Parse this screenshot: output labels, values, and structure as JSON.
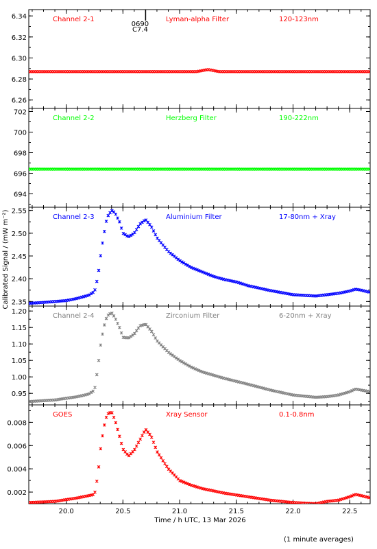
{
  "footnote": "(1 minute averages)",
  "event_marker": {
    "line1": "0690",
    "line2": "C7.4"
  },
  "chart_data": {
    "type": "scatter",
    "xlabel": "Time / h UTC, 13 Mar 2026",
    "ylabel": "Calibrated Signal / (mW m⁻²)",
    "xlim": [
      19.67,
      22.68
    ],
    "xticks": [
      20.0,
      20.5,
      21.0,
      21.5,
      22.0,
      22.5
    ],
    "xtick_labels": [
      "20.0",
      "20.5",
      "21.0",
      "21.5",
      "22.0",
      "22.5"
    ],
    "event_marker_x": 20.7,
    "panels": [
      {
        "channel": "Channel 2-1",
        "filter": "Lyman-alpha Filter",
        "band": "120-123nm",
        "color": "#ff0000",
        "ylim": [
          6.252,
          6.346
        ],
        "yticks": [
          6.26,
          6.28,
          6.3,
          6.32,
          6.34
        ],
        "ytick_labels": [
          "6.26",
          "6.28",
          "6.30",
          "6.32",
          "6.34"
        ],
        "series": {
          "x": [
            19.67,
            21.15,
            21.2,
            21.25,
            21.3,
            21.35,
            22.68
          ],
          "y": [
            6.287,
            6.287,
            6.288,
            6.289,
            6.288,
            6.287,
            6.287
          ]
        }
      },
      {
        "channel": "Channel 2-2",
        "filter": "Herzberg Filter",
        "band": "190-222nm",
        "color": "#00ff00",
        "ylim": [
          692.7,
          702.3
        ],
        "yticks": [
          694,
          696,
          698,
          700,
          702
        ],
        "ytick_labels": [
          "694",
          "696",
          "698",
          "700",
          "702"
        ],
        "series": {
          "x": [
            19.67,
            22.68
          ],
          "y": [
            696.4,
            696.4
          ]
        }
      },
      {
        "channel": "Channel 2-3",
        "filter": "Aluminium Filter",
        "band": "17-80nm + Xray",
        "color": "#0000ff",
        "ylim": [
          2.34,
          2.557
        ],
        "yticks": [
          2.35,
          2.4,
          2.45,
          2.5,
          2.55
        ],
        "ytick_labels": [
          "2.35",
          "2.40",
          "2.45",
          "2.50",
          "2.55"
        ],
        "series": {
          "x": [
            19.67,
            19.8,
            20.0,
            20.1,
            20.2,
            20.25,
            20.28,
            20.3,
            20.33,
            20.36,
            20.4,
            20.43,
            20.47,
            20.5,
            20.55,
            20.6,
            20.65,
            20.7,
            20.75,
            20.8,
            20.9,
            21.0,
            21.1,
            21.2,
            21.3,
            21.4,
            21.5,
            21.6,
            21.8,
            22.0,
            22.2,
            22.3,
            22.4,
            22.5,
            22.55,
            22.6,
            22.68
          ],
          "y": [
            2.346,
            2.348,
            2.352,
            2.357,
            2.364,
            2.372,
            2.405,
            2.445,
            2.495,
            2.535,
            2.55,
            2.545,
            2.525,
            2.5,
            2.492,
            2.5,
            2.52,
            2.53,
            2.515,
            2.49,
            2.46,
            2.44,
            2.425,
            2.415,
            2.405,
            2.398,
            2.393,
            2.385,
            2.374,
            2.365,
            2.362,
            2.365,
            2.368,
            2.373,
            2.377,
            2.375,
            2.37
          ]
        }
      },
      {
        "channel": "Channel 2-4",
        "filter": "Zirconium Filter",
        "band": "6-20nm + Xray",
        "color": "#808080",
        "ylim": [
          0.915,
          1.215
        ],
        "yticks": [
          0.95,
          1.0,
          1.05,
          1.1,
          1.15,
          1.2
        ],
        "ytick_labels": [
          "0.95",
          "1.00",
          "1.05",
          "1.10",
          "1.15",
          "1.20"
        ],
        "series": {
          "x": [
            19.67,
            19.9,
            20.1,
            20.2,
            20.25,
            20.28,
            20.3,
            20.33,
            20.36,
            20.4,
            20.43,
            20.47,
            20.5,
            20.55,
            20.6,
            20.65,
            20.7,
            20.75,
            20.8,
            20.9,
            21.0,
            21.1,
            21.2,
            21.4,
            21.6,
            21.8,
            22.0,
            22.2,
            22.3,
            22.4,
            22.5,
            22.55,
            22.6,
            22.68
          ],
          "y": [
            0.925,
            0.93,
            0.94,
            0.948,
            0.96,
            1.03,
            1.09,
            1.15,
            1.185,
            1.195,
            1.18,
            1.15,
            1.12,
            1.118,
            1.13,
            1.155,
            1.16,
            1.14,
            1.11,
            1.075,
            1.05,
            1.03,
            1.015,
            0.995,
            0.978,
            0.96,
            0.945,
            0.938,
            0.94,
            0.945,
            0.955,
            0.963,
            0.96,
            0.955
          ]
        }
      },
      {
        "channel": "GOES",
        "filter": "Xray Sensor",
        "band": "0.1-0.8nm",
        "color": "#ff0000",
        "ylim": [
          0.001,
          0.0095
        ],
        "yticks": [
          0.002,
          0.004,
          0.006,
          0.008
        ],
        "ytick_labels": [
          "0.002",
          "0.004",
          "0.006",
          "0.008"
        ],
        "series": {
          "x": [
            19.67,
            19.9,
            20.1,
            20.2,
            20.25,
            20.28,
            20.3,
            20.33,
            20.36,
            20.4,
            20.43,
            20.47,
            20.5,
            20.55,
            20.6,
            20.65,
            20.7,
            20.75,
            20.8,
            20.9,
            21.0,
            21.1,
            21.2,
            21.4,
            21.6,
            21.8,
            22.0,
            22.2,
            22.3,
            22.4,
            22.5,
            22.55,
            22.6,
            22.68
          ],
          "y": [
            0.0011,
            0.0012,
            0.0015,
            0.0017,
            0.0018,
            0.0035,
            0.0055,
            0.0075,
            0.0087,
            0.0089,
            0.0082,
            0.0068,
            0.0057,
            0.0051,
            0.0056,
            0.0065,
            0.0074,
            0.0068,
            0.0055,
            0.004,
            0.003,
            0.0026,
            0.0023,
            0.0019,
            0.0016,
            0.0013,
            0.0011,
            0.001,
            0.0012,
            0.0013,
            0.0016,
            0.0018,
            0.0017,
            0.0015
          ]
        }
      }
    ]
  }
}
